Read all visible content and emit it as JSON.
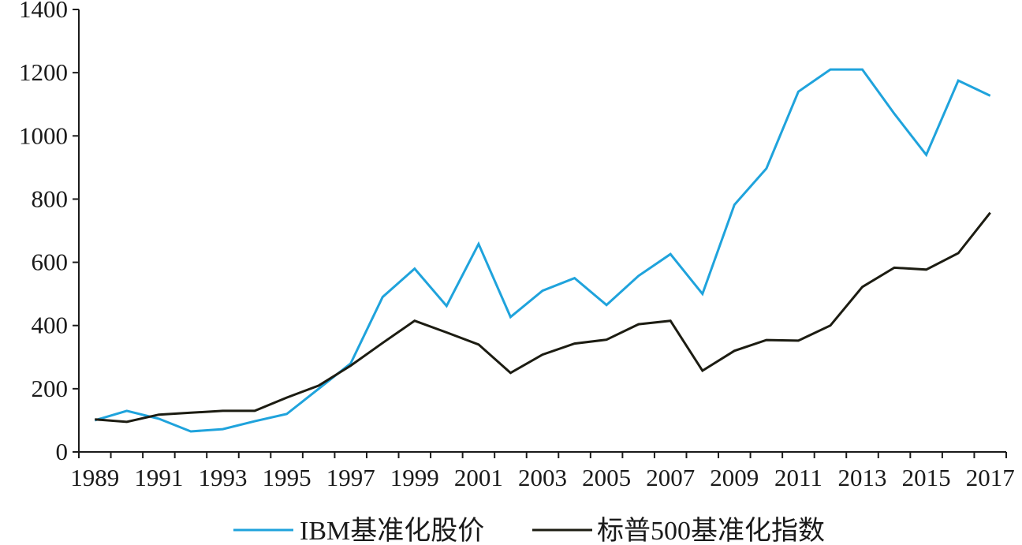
{
  "chart_data": {
    "type": "line",
    "x": [
      1989,
      1990,
      1991,
      1992,
      1993,
      1994,
      1995,
      1996,
      1997,
      1998,
      1999,
      2000,
      2001,
      2002,
      2003,
      2004,
      2005,
      2006,
      2007,
      2008,
      2009,
      2010,
      2011,
      2012,
      2013,
      2014,
      2015,
      2016,
      2017
    ],
    "x_ticks": [
      "1989",
      "1991",
      "1993",
      "1995",
      "1997",
      "1999",
      "2001",
      "2003",
      "2005",
      "2007",
      "2009",
      "2011",
      "2013",
      "2015",
      "2017"
    ],
    "y_ticks": [
      "0",
      "200",
      "400",
      "600",
      "800",
      "1000",
      "1200",
      "1400"
    ],
    "ylim": [
      0,
      1400
    ],
    "series": [
      {
        "name": "IBM基准化股价",
        "color": "#1fa3dc",
        "values": [
          100,
          130,
          105,
          65,
          72,
          97,
          120,
          200,
          280,
          490,
          580,
          462,
          658,
          427,
          510,
          550,
          465,
          557,
          626,
          500,
          782,
          897,
          1140,
          1210,
          1210,
          1070,
          940,
          1175,
          1127
        ]
      },
      {
        "name": "标普500基准化指数",
        "color": "#1c1c12",
        "values": [
          103,
          95,
          118,
          124,
          130,
          130,
          172,
          210,
          273,
          345,
          415,
          378,
          340,
          250,
          308,
          343,
          355,
          404,
          415,
          257,
          320,
          354,
          352,
          400,
          522,
          583,
          577,
          629,
          757
        ]
      }
    ],
    "legend": "bottom-center",
    "grid": false
  }
}
